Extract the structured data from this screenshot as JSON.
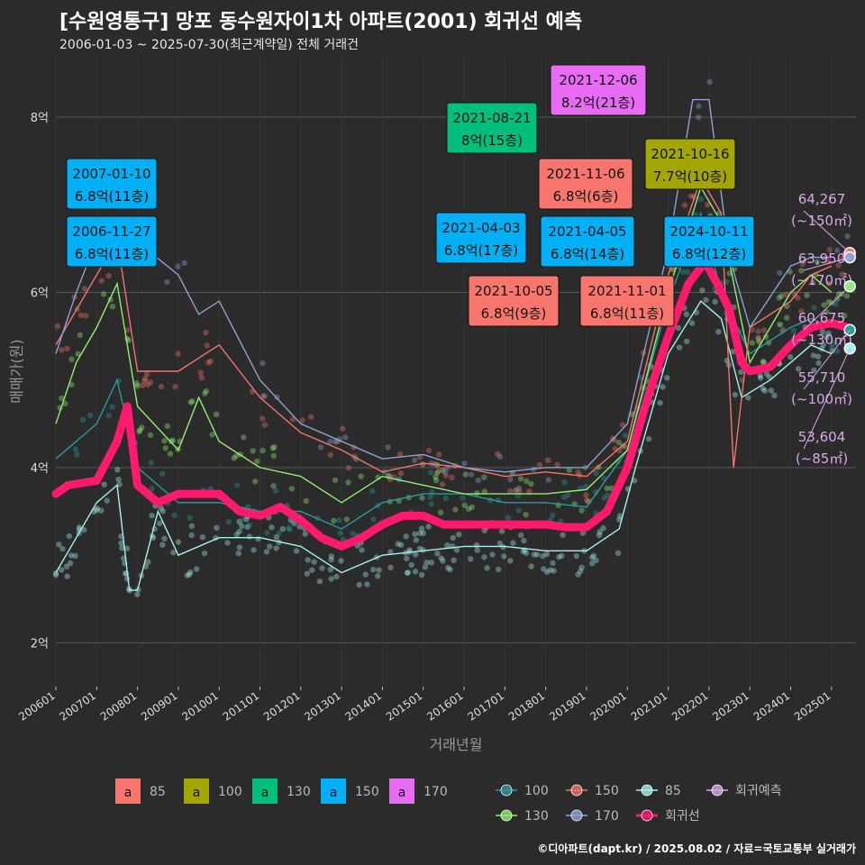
{
  "title": "[수원영통구] 망포 동수원자이1차 아파트(2001) 회귀선 예측",
  "subtitle": "2006-01-03 ~ 2025-07-30(최근계약일) 전체 거래건",
  "caption": "©디아파트(dapt.kr) / 2025.08.02 / 자료=국토교통부 실거래가",
  "colors": {
    "background": "#2b2b2b",
    "s85": "#f8766d",
    "s100": "#a3a500",
    "s130": "#00bf7d",
    "s150": "#00b0f6",
    "s170": "#e76bf3",
    "line85": "#a6f0f0",
    "line100": "#2a9aa0",
    "line130": "#90ee70",
    "line150": "#f4736a",
    "line170": "#8ea2d4",
    "regression": "#ff1a6e",
    "forecast": "#d8a8e8"
  },
  "chart_data": {
    "type": "line",
    "xlabel": "거래년월",
    "ylabel": "매매가(원)",
    "ylim": [
      1.5,
      8.7
    ],
    "y_ticks": [
      {
        "value": 2,
        "label": "2억"
      },
      {
        "value": 4,
        "label": "4억"
      },
      {
        "value": 6,
        "label": "6억"
      },
      {
        "value": 8,
        "label": "8억"
      }
    ],
    "x_ticks": [
      "200601",
      "200701",
      "200801",
      "200901",
      "201001",
      "201101",
      "201201",
      "201301",
      "201401",
      "201501",
      "201601",
      "201701",
      "201801",
      "201901",
      "202001",
      "202101",
      "202201",
      "202301",
      "202401",
      "202501"
    ],
    "grid": true,
    "series": [
      {
        "name": "회귀선",
        "key": "reg",
        "values": [
          [
            2006.0,
            3.7
          ],
          [
            2006.3,
            3.8
          ],
          [
            2007.0,
            3.85
          ],
          [
            2007.5,
            4.3
          ],
          [
            2007.75,
            4.7
          ],
          [
            2008.0,
            3.8
          ],
          [
            2008.5,
            3.6
          ],
          [
            2009.0,
            3.7
          ],
          [
            2009.5,
            3.7
          ],
          [
            2010.0,
            3.7
          ],
          [
            2010.5,
            3.5
          ],
          [
            2011.0,
            3.45
          ],
          [
            2011.5,
            3.55
          ],
          [
            2012.0,
            3.4
          ],
          [
            2012.5,
            3.2
          ],
          [
            2013.0,
            3.1
          ],
          [
            2013.5,
            3.2
          ],
          [
            2014.0,
            3.35
          ],
          [
            2014.5,
            3.45
          ],
          [
            2015.0,
            3.45
          ],
          [
            2015.5,
            3.35
          ],
          [
            2016.0,
            3.35
          ],
          [
            2016.5,
            3.35
          ],
          [
            2017.0,
            3.35
          ],
          [
            2017.5,
            3.35
          ],
          [
            2018.0,
            3.35
          ],
          [
            2018.5,
            3.32
          ],
          [
            2019.0,
            3.32
          ],
          [
            2019.5,
            3.5
          ],
          [
            2020.0,
            4.0
          ],
          [
            2020.5,
            4.8
          ],
          [
            2021.0,
            5.5
          ],
          [
            2021.5,
            6.1
          ],
          [
            2021.9,
            6.35
          ],
          [
            2022.2,
            6.1
          ],
          [
            2022.5,
            5.8
          ],
          [
            2022.8,
            5.2
          ],
          [
            2023.0,
            5.1
          ],
          [
            2023.5,
            5.15
          ],
          [
            2024.0,
            5.4
          ],
          [
            2024.5,
            5.6
          ],
          [
            2025.0,
            5.65
          ],
          [
            2025.4,
            5.6
          ]
        ]
      },
      {
        "name": "85",
        "key": "l85",
        "values": [
          [
            2006.0,
            2.8
          ],
          [
            2006.5,
            3.2
          ],
          [
            2007.0,
            3.6
          ],
          [
            2007.5,
            3.8
          ],
          [
            2007.8,
            2.6
          ],
          [
            2008.0,
            2.6
          ],
          [
            2008.5,
            3.5
          ],
          [
            2009.0,
            3.0
          ],
          [
            2010.0,
            3.2
          ],
          [
            2011.0,
            3.2
          ],
          [
            2012.0,
            3.1
          ],
          [
            2013.0,
            2.8
          ],
          [
            2014.0,
            3.0
          ],
          [
            2015.0,
            3.05
          ],
          [
            2016.0,
            3.1
          ],
          [
            2017.0,
            3.1
          ],
          [
            2018.0,
            3.05
          ],
          [
            2019.0,
            3.05
          ],
          [
            2019.8,
            3.3
          ],
          [
            2020.2,
            4.0
          ],
          [
            2021.0,
            5.3
          ],
          [
            2021.8,
            5.9
          ],
          [
            2022.3,
            5.7
          ],
          [
            2022.8,
            4.8
          ],
          [
            2023.5,
            5.0
          ],
          [
            2024.0,
            5.2
          ],
          [
            2024.5,
            5.4
          ],
          [
            2025.0,
            5.3
          ]
        ]
      },
      {
        "name": "100",
        "key": "l100",
        "values": [
          [
            2006.0,
            4.1
          ],
          [
            2006.5,
            4.3
          ],
          [
            2007.0,
            4.5
          ],
          [
            2007.5,
            5.0
          ],
          [
            2008.0,
            4.0
          ],
          [
            2009.0,
            3.6
          ],
          [
            2010.0,
            3.6
          ],
          [
            2011.0,
            3.5
          ],
          [
            2012.0,
            3.5
          ],
          [
            2013.0,
            3.3
          ],
          [
            2014.0,
            3.6
          ],
          [
            2015.0,
            3.7
          ],
          [
            2016.0,
            3.7
          ],
          [
            2017.0,
            3.6
          ],
          [
            2018.0,
            3.6
          ],
          [
            2019.0,
            3.55
          ],
          [
            2020.0,
            4.2
          ],
          [
            2021.0,
            5.9
          ],
          [
            2021.8,
            6.9
          ],
          [
            2022.3,
            6.0
          ],
          [
            2023.0,
            5.3
          ],
          [
            2024.0,
            5.6
          ],
          [
            2024.5,
            5.7
          ],
          [
            2025.0,
            5.6
          ]
        ]
      },
      {
        "name": "130",
        "key": "l130",
        "values": [
          [
            2006.0,
            4.5
          ],
          [
            2006.5,
            5.2
          ],
          [
            2007.0,
            5.6
          ],
          [
            2007.5,
            6.1
          ],
          [
            2008.0,
            4.7
          ],
          [
            2009.0,
            4.2
          ],
          [
            2009.5,
            4.8
          ],
          [
            2010.0,
            4.3
          ],
          [
            2011.0,
            4.0
          ],
          [
            2012.0,
            3.9
          ],
          [
            2013.0,
            3.6
          ],
          [
            2014.0,
            3.9
          ],
          [
            2015.0,
            3.8
          ],
          [
            2016.0,
            3.7
          ],
          [
            2017.0,
            3.7
          ],
          [
            2018.0,
            3.7
          ],
          [
            2019.0,
            3.75
          ],
          [
            2020.0,
            4.2
          ],
          [
            2021.0,
            6.0
          ],
          [
            2021.8,
            7.2
          ],
          [
            2022.3,
            6.8
          ],
          [
            2023.0,
            5.2
          ],
          [
            2024.0,
            6.0
          ],
          [
            2024.5,
            6.2
          ],
          [
            2025.0,
            6.0
          ]
        ]
      },
      {
        "name": "150",
        "key": "l150",
        "values": [
          [
            2006.0,
            5.4
          ],
          [
            2006.5,
            5.8
          ],
          [
            2007.0,
            6.2
          ],
          [
            2007.5,
            6.6
          ],
          [
            2008.0,
            5.1
          ],
          [
            2009.0,
            5.1
          ],
          [
            2010.0,
            5.4
          ],
          [
            2011.0,
            4.8
          ],
          [
            2012.0,
            4.4
          ],
          [
            2013.0,
            4.2
          ],
          [
            2014.0,
            3.95
          ],
          [
            2015.0,
            4.05
          ],
          [
            2016.0,
            4.0
          ],
          [
            2017.0,
            3.9
          ],
          [
            2018.0,
            3.95
          ],
          [
            2019.0,
            3.9
          ],
          [
            2020.0,
            4.3
          ],
          [
            2021.0,
            6.2
          ],
          [
            2021.8,
            7.3
          ],
          [
            2022.3,
            6.9
          ],
          [
            2022.6,
            4.0
          ],
          [
            2023.0,
            5.6
          ],
          [
            2024.0,
            5.9
          ],
          [
            2024.5,
            6.2
          ],
          [
            2025.0,
            6.3
          ]
        ]
      },
      {
        "name": "170",
        "key": "l170",
        "values": [
          [
            2006.0,
            5.3
          ],
          [
            2006.5,
            6.0
          ],
          [
            2007.0,
            6.6
          ],
          [
            2007.4,
            6.8
          ],
          [
            2009.0,
            6.2
          ],
          [
            2009.5,
            5.75
          ],
          [
            2010.0,
            5.9
          ],
          [
            2011.0,
            5.0
          ],
          [
            2012.0,
            4.5
          ],
          [
            2013.0,
            4.3
          ],
          [
            2014.0,
            4.1
          ],
          [
            2015.0,
            4.15
          ],
          [
            2016.0,
            4.0
          ],
          [
            2017.0,
            3.95
          ],
          [
            2018.0,
            4.0
          ],
          [
            2019.0,
            4.0
          ],
          [
            2020.0,
            4.5
          ],
          [
            2021.0,
            6.5
          ],
          [
            2021.6,
            8.2
          ],
          [
            2022.0,
            8.2
          ],
          [
            2022.5,
            6.4
          ],
          [
            2023.0,
            5.6
          ],
          [
            2024.0,
            6.3
          ],
          [
            2024.5,
            6.4
          ],
          [
            2025.0,
            6.4
          ]
        ]
      }
    ],
    "highlight_labels": [
      {
        "date": "2021-12-06",
        "text": "8.2억(21층)",
        "group": "s170"
      },
      {
        "date": "2021-08-21",
        "text": "8억(15층)",
        "group": "s130"
      },
      {
        "date": "2021-10-16",
        "text": "7.7억(10층)",
        "group": "s100"
      },
      {
        "date": "2021-11-06",
        "text": "6.8억(6층)",
        "group": "s85"
      },
      {
        "date": "2007-01-10",
        "text": "6.8억(11층)",
        "group": "s150"
      },
      {
        "date": "2006-11-27",
        "text": "6.8억(11층)",
        "group": "s150"
      },
      {
        "date": "2021-04-03",
        "text": "6.8억(17층)",
        "group": "s150"
      },
      {
        "date": "2021-04-05",
        "text": "6.8억(14층)",
        "group": "s150"
      },
      {
        "date": "2024-10-11",
        "text": "6.8억(12층)",
        "group": "s150"
      },
      {
        "date": "2021-10-05",
        "text": "6.8억(9층)",
        "group": "s85"
      },
      {
        "date": "2021-11-01",
        "text": "6.8억(11층)",
        "group": "s85"
      }
    ],
    "forecast_labels": [
      {
        "value": "64,267",
        "area": "(~150㎡)",
        "y": 6.45,
        "key": "line150"
      },
      {
        "value": "63,950",
        "area": "(~170㎡)",
        "y": 6.4,
        "key": "line170"
      },
      {
        "value": "60,675",
        "area": "(~130㎡)",
        "y": 6.07,
        "key": "line130"
      },
      {
        "value": "55,710",
        "area": "(~100㎡)",
        "y": 5.57,
        "key": "line100"
      },
      {
        "value": "53,604",
        "area": "(~85㎡)",
        "y": 5.36,
        "key": "line85"
      }
    ],
    "legend": {
      "position": "bottom",
      "fill_items": [
        {
          "label": "85",
          "key": "s85"
        },
        {
          "label": "100",
          "key": "s100"
        },
        {
          "label": "130",
          "key": "s130"
        },
        {
          "label": "150",
          "key": "s150"
        },
        {
          "label": "170",
          "key": "s170"
        }
      ],
      "fill_glyph": "a",
      "line_items": [
        {
          "label": "100",
          "key": "line100"
        },
        {
          "label": "150",
          "key": "line150"
        },
        {
          "label": "85",
          "key": "line85"
        },
        {
          "label": "회귀예측",
          "key": "forecast"
        },
        {
          "label": "130",
          "key": "line130"
        },
        {
          "label": "170",
          "key": "line170"
        },
        {
          "label": "회귀선",
          "key": "regression"
        }
      ]
    }
  }
}
